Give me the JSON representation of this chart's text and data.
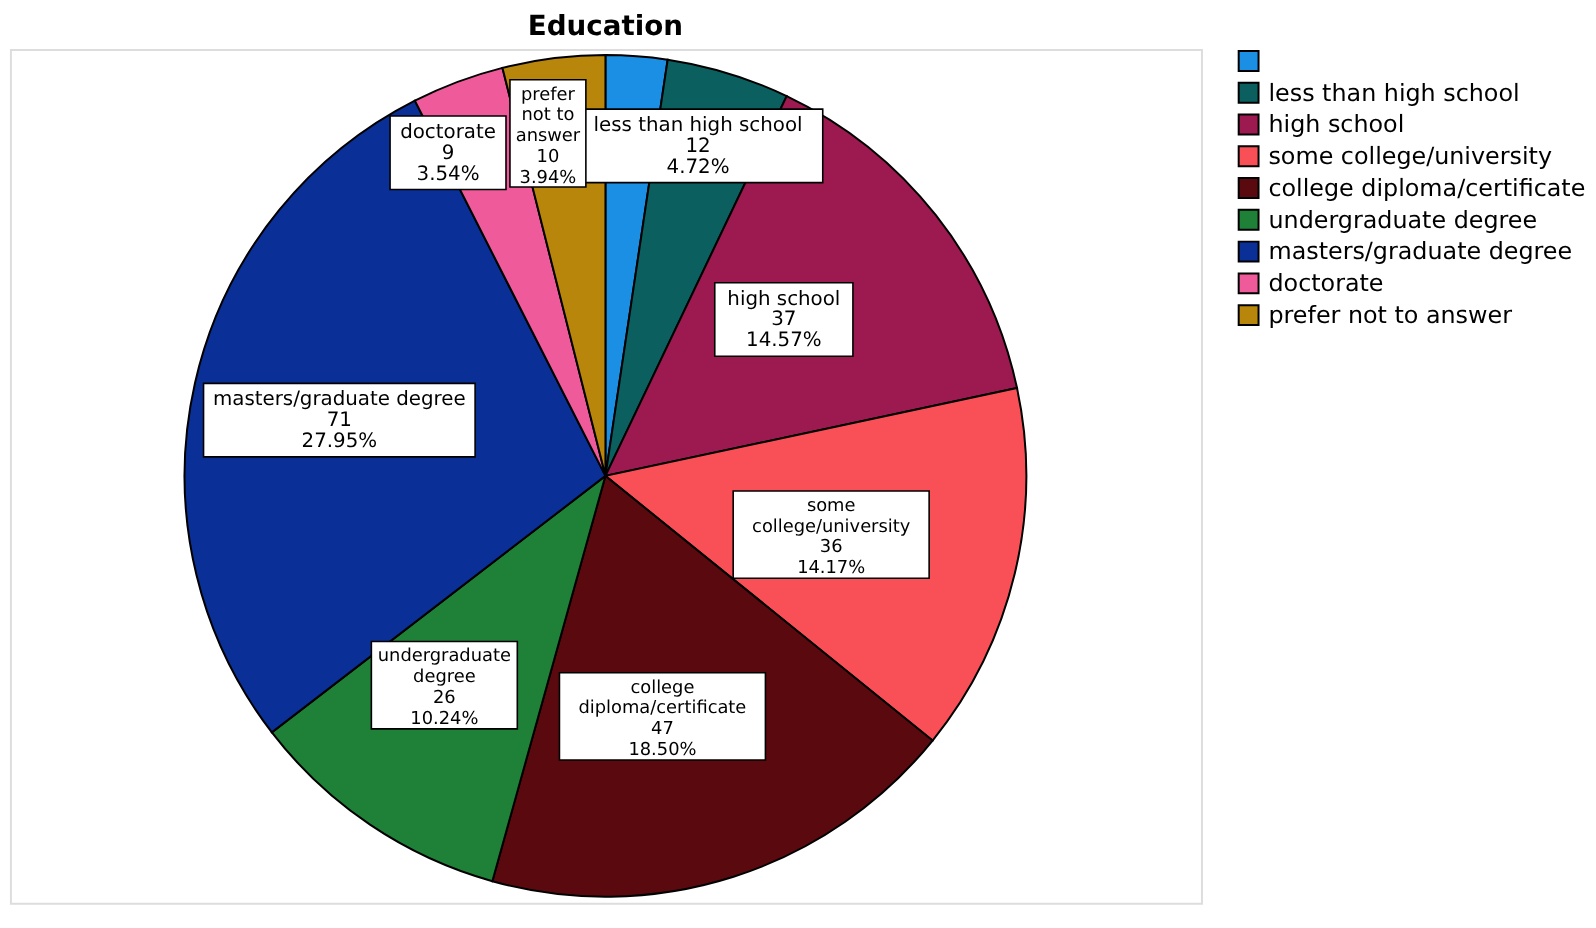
{
  "chart_data": {
    "type": "pie",
    "title": "Education",
    "categories": [
      null,
      "less than high school",
      "high school",
      "some college/university",
      "college diploma/certificate",
      "undergraduate degree",
      "masters/graduate degree",
      "doctorate",
      "prefer not to answer"
    ],
    "values": [
      6,
      12,
      37,
      36,
      47,
      26,
      71,
      9,
      10
    ],
    "value_labels": [
      null,
      "less than high school\n12\n4.72%",
      "high school\n37\n14.57%",
      "some\ncollege/university\n36\n14.17%",
      "college\ndiploma/certificate\n47\n18.50%",
      "undergraduate\ndegree\n26\n10.24%",
      "masters/graduate degree\n71\n27.95%",
      "doctorate\n9\n3.54%",
      "prefer\nnot to\nanswer\n10\n3.94%"
    ],
    "colors": [
      "#1a8fe3",
      "#0b5f5f",
      "#9c1a50",
      "#f95058",
      "#5a0a0f",
      "#1f8038",
      "#0a2f96",
      "#ef5a9a",
      "#b8860b"
    ],
    "legend": "top right"
  }
}
